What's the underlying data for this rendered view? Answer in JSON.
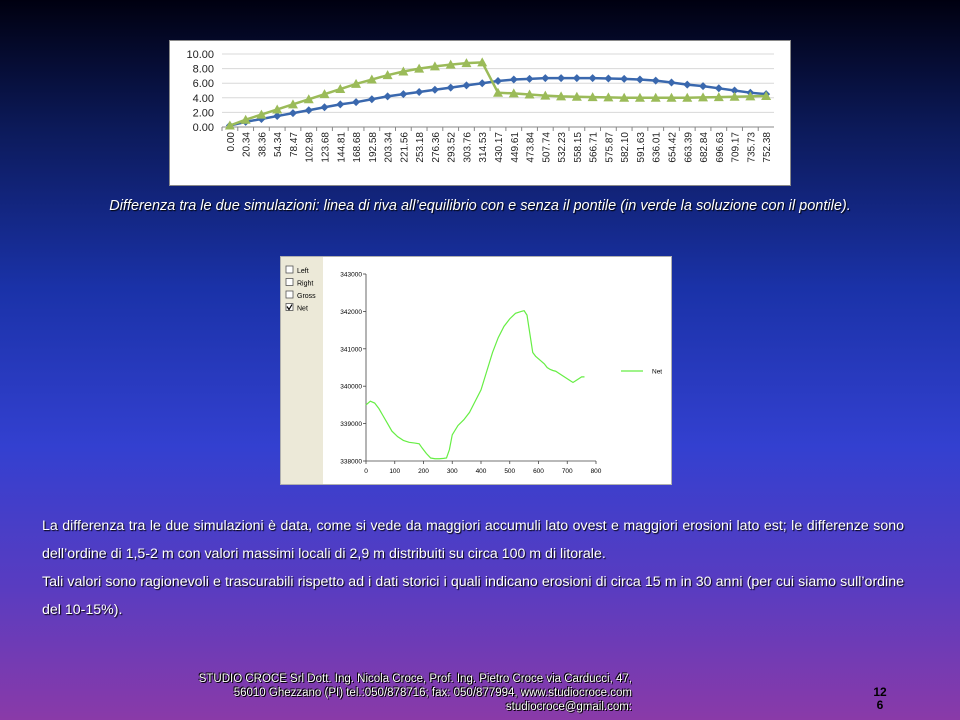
{
  "caption": "Differenza tra le due simulazioni: linea di riva all’equilibrio con e senza il pontile (in verde la soluzione con il pontile).",
  "paragraphs": [
    "La differenza tra le due simulazioni è data, come si vede da maggiori accumuli lato ovest e maggiori erosioni lato est; le differenze sono dell’ordine di 1,5-2 m con valori massimi locali di 2,9 m distribuiti su circa 100 m di litorale.",
    "Tali valori sono ragionevoli e trascurabili rispetto ad i dati storici i quali indicano erosioni di circa 15 m in 30 anni (per cui siamo sull’ordine del 10-15%)."
  ],
  "footer": {
    "line1": "STUDIO CROCE Srl   Dott. Ing. Nicola Croce, Prof. Ing. Pietro Croce  via Carducci, 47,",
    "line2": "56010 Ghezzano (PI) tel.:050/878716; fax: 050/877994, www.studiocroce.com",
    "line3": "studiocroce@gmail.com:"
  },
  "slide_number": {
    "part1": "12",
    "part2": "6"
  },
  "colors": {
    "blue_series": "#3a68ae",
    "green_series": "#9bbb59",
    "net_line": "#66ee44"
  },
  "chart_data": [
    {
      "type": "line",
      "title": "",
      "xlabel": "",
      "ylabel": "",
      "ylim": [
        0,
        10
      ],
      "yticks": [
        "0.00",
        "2.00",
        "4.00",
        "6.00",
        "8.00",
        "10.00"
      ],
      "grid": true,
      "legend": "none",
      "categories": [
        "0.00",
        "20.34",
        "38.36",
        "54.34",
        "78.47",
        "102.98",
        "123.68",
        "144.81",
        "168.68",
        "192.58",
        "203.34",
        "221.56",
        "253.18",
        "276.36",
        "293.52",
        "303.76",
        "314.53",
        "430.17",
        "449.61",
        "473.84",
        "507.74",
        "532.23",
        "558.15",
        "566.71",
        "575.87",
        "582.10",
        "591.63",
        "636.01",
        "654.42",
        "663.39",
        "682.84",
        "696.63",
        "709.17",
        "735.73",
        "752.38"
      ],
      "series": [
        {
          "color": "#3a68ae",
          "marker": "diamond",
          "values": [
            0.2,
            0.7,
            1.1,
            1.5,
            1.9,
            2.3,
            2.7,
            3.1,
            3.4,
            3.8,
            4.2,
            4.5,
            4.8,
            5.1,
            5.4,
            5.7,
            6.0,
            6.3,
            6.5,
            6.6,
            6.7,
            6.7,
            6.7,
            6.7,
            6.65,
            6.6,
            6.5,
            6.35,
            6.1,
            5.8,
            5.6,
            5.3,
            5.0,
            4.7,
            4.5
          ]
        },
        {
          "color": "#9bbb59",
          "marker": "triangle",
          "values": [
            0.2,
            1.0,
            1.7,
            2.4,
            3.1,
            3.8,
            4.5,
            5.2,
            5.9,
            6.5,
            7.1,
            7.6,
            8.0,
            8.3,
            8.55,
            8.75,
            8.85,
            4.7,
            4.6,
            4.45,
            4.3,
            4.2,
            4.15,
            4.1,
            4.05,
            4.0,
            4.0,
            4.0,
            4.0,
            4.0,
            4.05,
            4.1,
            4.15,
            4.2,
            4.25
          ]
        }
      ]
    },
    {
      "type": "line",
      "title": "",
      "xlim": [
        0,
        800
      ],
      "ylim": [
        338000,
        343000
      ],
      "xticks": [
        0,
        100,
        200,
        300,
        400,
        500,
        600,
        700,
        800
      ],
      "yticks": [
        338000,
        339000,
        340000,
        341000,
        342000,
        343000
      ],
      "legend": "right",
      "checkboxes": [
        {
          "label": "Left",
          "checked": false
        },
        {
          "label": "Right",
          "checked": false
        },
        {
          "label": "Gross",
          "checked": false
        },
        {
          "label": "Net",
          "checked": true
        }
      ],
      "series": [
        {
          "name": "Net",
          "color": "#66ee44",
          "x": [
            0,
            15,
            30,
            45,
            60,
            75,
            90,
            110,
            130,
            150,
            170,
            185,
            195,
            210,
            225,
            240,
            255,
            270,
            280,
            290,
            300,
            320,
            340,
            360,
            380,
            400,
            420,
            440,
            460,
            480,
            500,
            520,
            540,
            550,
            560,
            570,
            580,
            590,
            605,
            620,
            630,
            640,
            650,
            660,
            670,
            680,
            690,
            700,
            710,
            720,
            730,
            740,
            750,
            760
          ],
          "y": [
            339500,
            339600,
            339550,
            339400,
            339200,
            339000,
            338800,
            338650,
            338550,
            338500,
            338480,
            338460,
            338350,
            338200,
            338080,
            338060,
            338060,
            338070,
            338080,
            338300,
            338700,
            338950,
            339100,
            339300,
            339600,
            339900,
            340400,
            340900,
            341300,
            341600,
            341800,
            341950,
            342000,
            342020,
            341900,
            341400,
            340900,
            340800,
            340700,
            340600,
            340500,
            340450,
            340420,
            340400,
            340350,
            340300,
            340250,
            340200,
            340150,
            340100,
            340150,
            340200,
            340250,
            340250
          ]
        }
      ]
    }
  ]
}
